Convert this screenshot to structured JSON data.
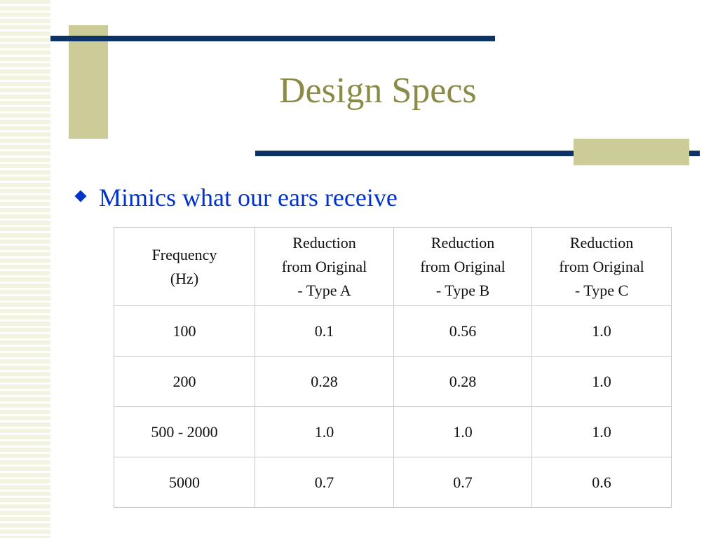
{
  "slide": {
    "title": "Design Specs",
    "bullet": "Mimics what our ears receive"
  },
  "table": {
    "headers": [
      [
        "Frequency",
        "(Hz)"
      ],
      [
        "Reduction",
        "from Original",
        "- Type A"
      ],
      [
        "Reduction",
        "from Original",
        "- Type B"
      ],
      [
        "Reduction",
        "from Original",
        "- Type C"
      ]
    ],
    "rows": [
      [
        "100",
        "0.1",
        "0.56",
        "1.0"
      ],
      [
        "200",
        "0.28",
        "0.28",
        "1.0"
      ],
      [
        "500 - 2000",
        "1.0",
        "1.0",
        "1.0"
      ],
      [
        "5000",
        "0.7",
        "0.7",
        "0.6"
      ]
    ]
  },
  "colors": {
    "title": "#8b8b47",
    "bullet_text": "#0033cc",
    "rule": "#0d3366",
    "accent_block": "#cccc99"
  }
}
